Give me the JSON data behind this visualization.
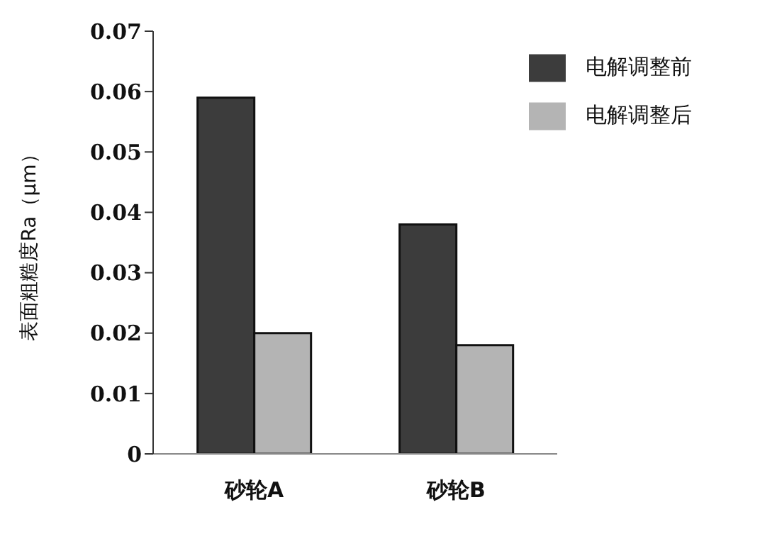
{
  "chart_data": {
    "type": "bar",
    "ylabel": "表面粗糙度Ra（μm）",
    "categories": [
      "砂轮A",
      "砂轮B"
    ],
    "series": [
      {
        "name": "电解调整前",
        "color": "#3c3c3c",
        "values": [
          0.059,
          0.038
        ]
      },
      {
        "name": "电解调整后",
        "color": "#b4b4b4",
        "values": [
          0.02,
          0.018
        ]
      }
    ],
    "ylim": [
      0,
      0.07
    ],
    "yticks": [
      0,
      0.01,
      0.02,
      0.03,
      0.04,
      0.05,
      0.06,
      0.07
    ],
    "grid": false,
    "legend": "top right"
  }
}
